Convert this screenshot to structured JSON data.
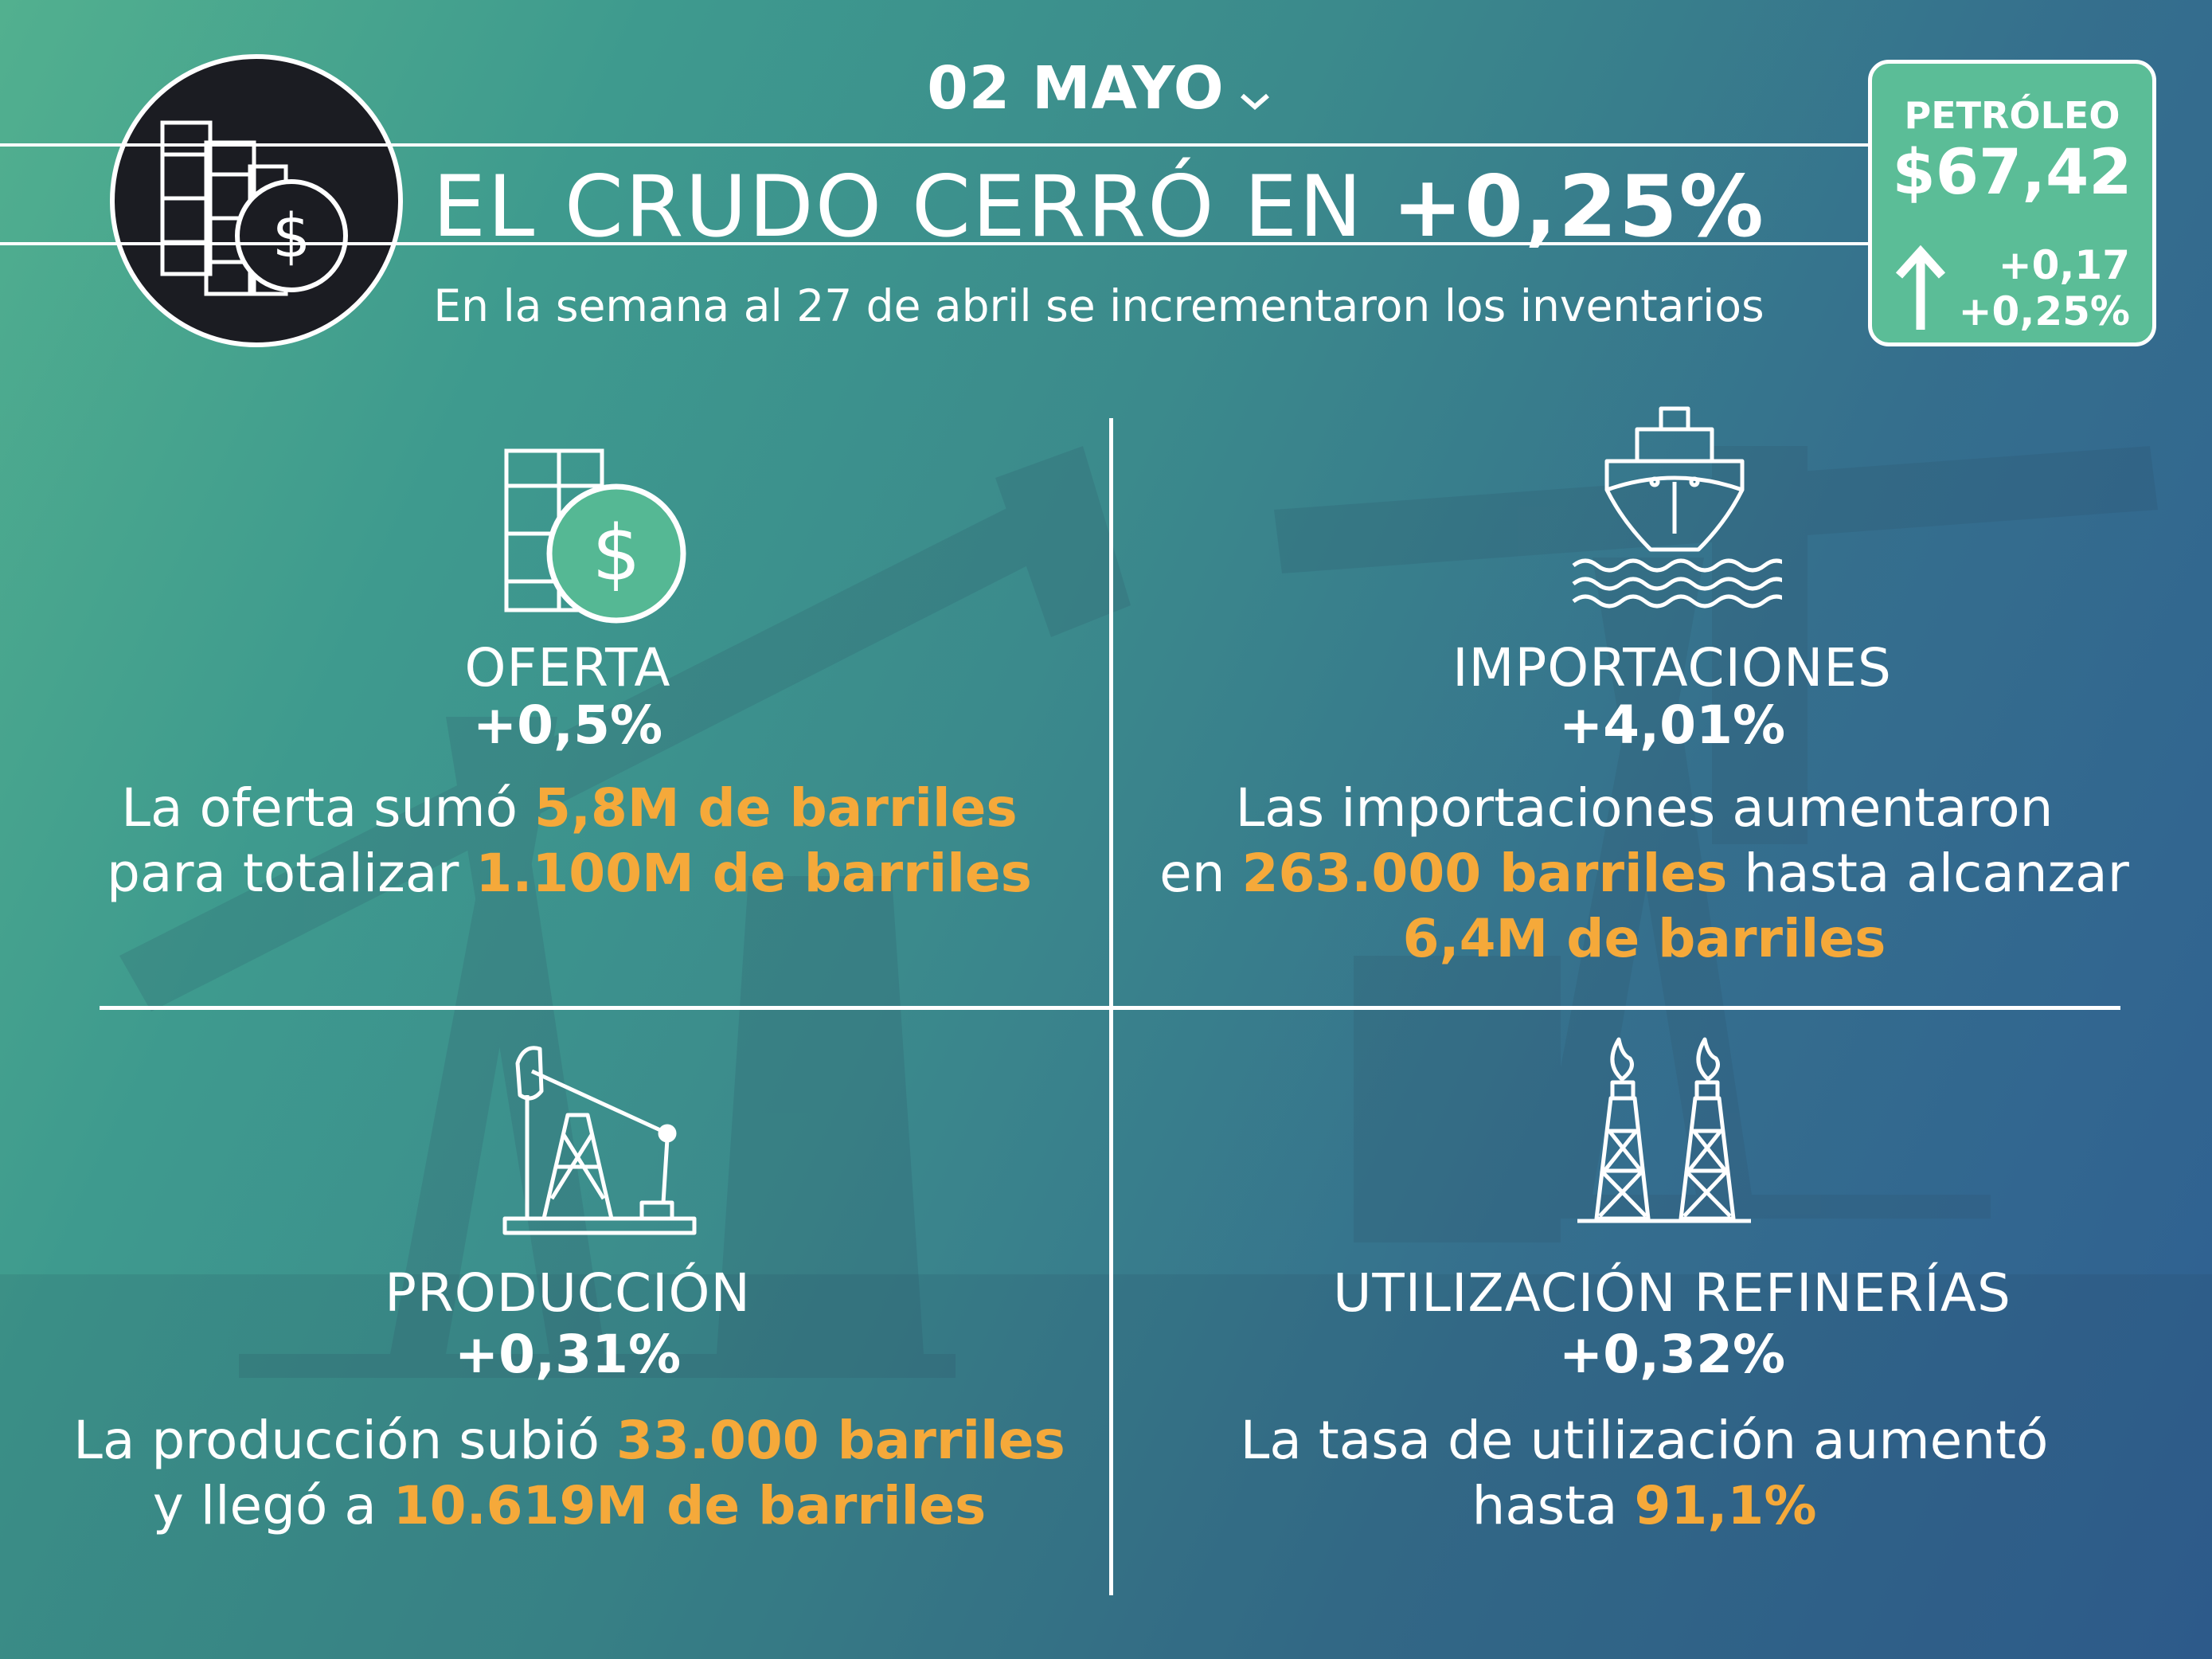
{
  "header": {
    "date": "02 MAYO",
    "headline_prefix": "EL CRUDO CERRÓ EN ",
    "headline_value": "+0,25%",
    "subtitle": "En la semana al 27 de abril se incrementaron los inventarios"
  },
  "price_box": {
    "label": "PETRÓLEO",
    "price": "$67,42",
    "change_abs": "+0,17",
    "change_pct": "+0,25%"
  },
  "quadrants": {
    "oferta": {
      "title": "OFERTA",
      "pct": "+0,5%",
      "line1_a": "La oferta sumó ",
      "line1_hl": "5,8M de barriles",
      "line2_a": "para totalizar ",
      "line2_hl": "1.100M de barriles"
    },
    "importaciones": {
      "title": "IMPORTACIONES",
      "pct": "+4,01%",
      "line1_a": "Las importaciones aumentaron",
      "line2_a": "en ",
      "line2_hl": "263.000 barriles",
      "line2_b": " hasta alcanzar",
      "line3_hl": "6,4M de barriles"
    },
    "produccion": {
      "title": "PRODUCCIÓN",
      "pct": "+0,31%",
      "line1_a": "La producción subió ",
      "line1_hl": "33.000 barriles",
      "line2_a": "y llegó a ",
      "line2_hl": "10.619M de barriles"
    },
    "refinerias": {
      "title": "UTILIZACIÓN REFINERÍAS",
      "pct": "+0,32%",
      "line1_a": "La tasa de utilización aumentó",
      "line2_a": "hasta ",
      "line2_hl": "91,1%"
    }
  },
  "colors": {
    "highlight": "#f5a93a",
    "price_box": "#5bbd97",
    "logo_bg": "#1b1c22"
  },
  "icons": {
    "logo": "oil-barrels-dollar-icon",
    "oferta": "oil-barrels-dollar-icon",
    "importaciones": "tanker-ship-icon",
    "produccion": "pumpjack-icon",
    "refinerias": "flare-towers-icon",
    "trend": "arrow-up-icon",
    "date": "chevron-down-icon"
  }
}
